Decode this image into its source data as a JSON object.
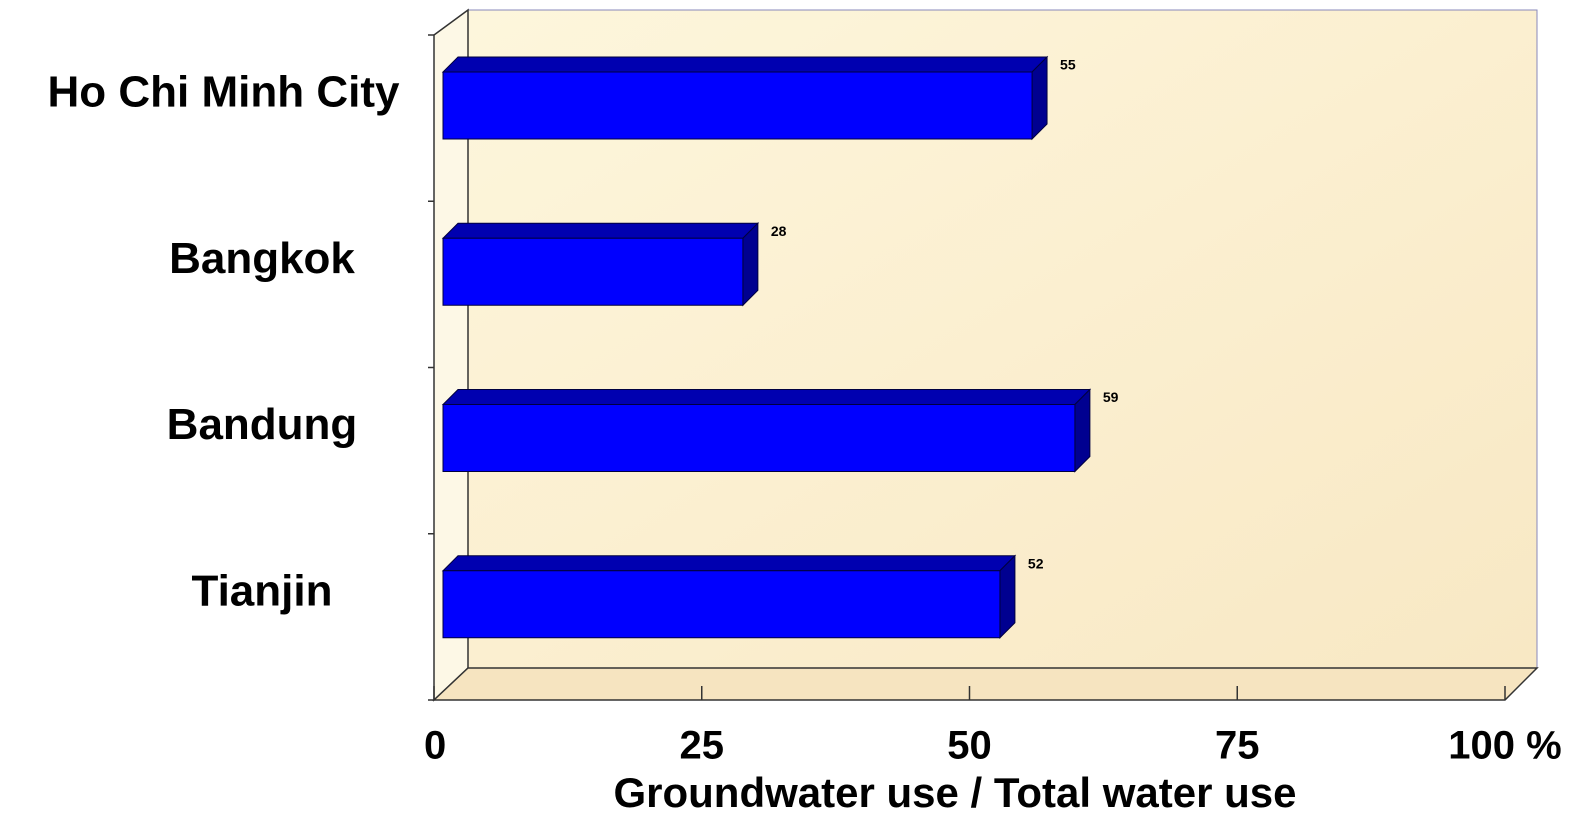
{
  "chart_data": {
    "type": "bar",
    "orientation": "horizontal",
    "categories": [
      "Ho Chi Minh City",
      "Bangkok",
      "Bandung",
      "Tianjin"
    ],
    "values": [
      55,
      28,
      59,
      52
    ],
    "color": "#0000ff",
    "xlabel": "Groundwater use / Total water use",
    "xlim": [
      0,
      100
    ],
    "xticks": [
      0,
      25,
      50,
      75,
      {
        "value": 100,
        "label": "100 %"
      }
    ]
  }
}
